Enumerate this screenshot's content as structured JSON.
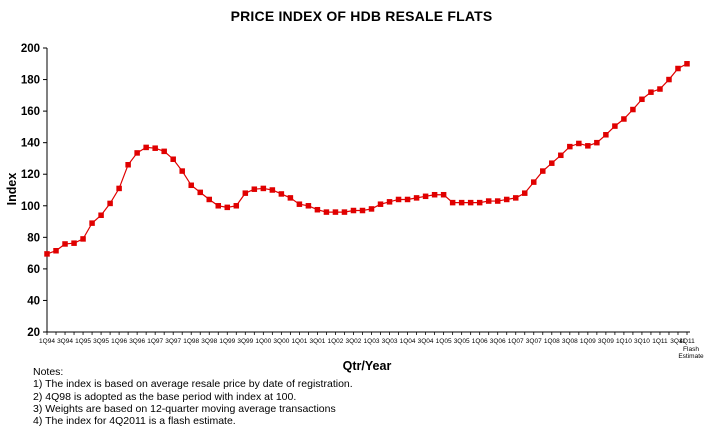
{
  "chart_data": {
    "type": "line",
    "title": "PRICE INDEX OF HDB RESALE FLATS",
    "xlabel": "Qtr/Year",
    "ylabel": "Index",
    "ylim": [
      20,
      200
    ],
    "yticks": [
      "200",
      "180",
      "160",
      "140",
      "120",
      "100",
      "80",
      "60",
      "40",
      "20"
    ],
    "grid": false,
    "legend": "none",
    "marker": "square",
    "line_color": "#e00000",
    "marker_color": "#e00000",
    "x_tick_labels": [
      "1Q94",
      "3Q94",
      "1Q95",
      "3Q95",
      "1Q96",
      "3Q96",
      "1Q97",
      "3Q97",
      "1Q98",
      "3Q98",
      "1Q99",
      "3Q99",
      "1Q00",
      "3Q00",
      "1Q01",
      "3Q01",
      "1Q02",
      "3Q02",
      "1Q03",
      "3Q03",
      "1Q04",
      "3Q04",
      "1Q05",
      "3Q05",
      "1Q06",
      "3Q06",
      "1Q07",
      "3Q07",
      "1Q08",
      "3Q08",
      "1Q09",
      "3Q09",
      "1Q10",
      "3Q10",
      "1Q11",
      "3Q11",
      "4Q11"
    ],
    "last_tick_extra": [
      "Flash",
      "Estimate"
    ],
    "x": [
      "1Q94",
      "2Q94",
      "3Q94",
      "4Q94",
      "1Q95",
      "2Q95",
      "3Q95",
      "4Q95",
      "1Q96",
      "2Q96",
      "3Q96",
      "4Q96",
      "1Q97",
      "2Q97",
      "3Q97",
      "4Q97",
      "1Q98",
      "2Q98",
      "3Q98",
      "4Q98",
      "1Q99",
      "2Q99",
      "3Q99",
      "4Q99",
      "1Q00",
      "2Q00",
      "3Q00",
      "4Q00",
      "1Q01",
      "2Q01",
      "3Q01",
      "4Q01",
      "1Q02",
      "2Q02",
      "3Q02",
      "4Q02",
      "1Q03",
      "2Q03",
      "3Q03",
      "4Q03",
      "1Q04",
      "2Q04",
      "3Q04",
      "4Q04",
      "1Q05",
      "2Q05",
      "3Q05",
      "4Q05",
      "1Q06",
      "2Q06",
      "3Q06",
      "4Q06",
      "1Q07",
      "2Q07",
      "3Q07",
      "4Q07",
      "1Q08",
      "2Q08",
      "3Q08",
      "4Q08",
      "1Q09",
      "2Q09",
      "3Q09",
      "4Q09",
      "1Q10",
      "2Q10",
      "3Q10",
      "4Q10",
      "1Q11",
      "2Q11",
      "3Q11",
      "4Q11"
    ],
    "values": [
      69.5,
      71.5,
      75.8,
      76.3,
      79.0,
      89.0,
      94.0,
      101.5,
      111.0,
      126.0,
      133.5,
      137.0,
      136.5,
      134.5,
      129.5,
      122.0,
      113.0,
      108.5,
      104.0,
      100.0,
      99.0,
      100.0,
      108.0,
      110.5,
      111.0,
      110.0,
      107.5,
      105.0,
      101.0,
      100.0,
      97.5,
      96.0,
      96.0,
      96.0,
      97.0,
      97.0,
      98.0,
      101.0,
      102.5,
      104.0,
      104.0,
      105.0,
      106.0,
      107.0,
      107.0,
      102.0,
      102.0,
      102.0,
      102.0,
      103.0,
      103.0,
      104.0,
      105.0,
      108.0,
      115.0,
      122.0,
      127.0,
      132.0,
      137.5,
      139.5,
      138.0,
      140.0,
      145.0,
      150.5,
      155.0,
      161.0,
      167.5,
      172.0,
      174.0,
      180.0,
      187.0,
      190.0
    ]
  },
  "notes": {
    "heading": "Notes:",
    "items": [
      "1) The index  is based on average resale price by date of registration.",
      "2) 4Q98 is adopted as the base period with index at 100.",
      "3) Weights are based on 12-quarter moving average transactions",
      "4) The index for 4Q2011 is a flash estimate."
    ]
  }
}
